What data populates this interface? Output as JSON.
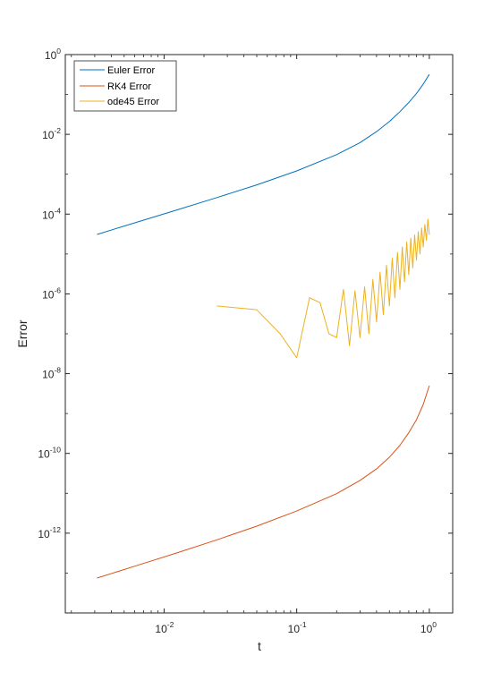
{
  "chart_data": {
    "type": "line",
    "xlabel": "t",
    "ylabel": "Error",
    "xscale": "log",
    "yscale": "log",
    "xlim": [
      0.0018,
      1.5
    ],
    "ylim": [
      1e-14,
      1
    ],
    "x_ticks": [
      {
        "base": "10",
        "exp": "-2",
        "value": 0.01
      },
      {
        "base": "10",
        "exp": "-1",
        "value": 0.1
      },
      {
        "base": "10",
        "exp": "0",
        "value": 1
      }
    ],
    "y_ticks": [
      {
        "base": "10",
        "exp": "0",
        "value": 1
      },
      {
        "base": "10",
        "exp": "-2",
        "value": 0.01
      },
      {
        "base": "10",
        "exp": "-4",
        "value": 0.0001
      },
      {
        "base": "10",
        "exp": "-6",
        "value": 1e-06
      },
      {
        "base": "10",
        "exp": "-8",
        "value": 1e-08
      },
      {
        "base": "10",
        "exp": "-10",
        "value": 1e-10
      },
      {
        "base": "10",
        "exp": "-12",
        "value": 1e-12
      }
    ],
    "grid": false,
    "legend_position": "top-left",
    "series": [
      {
        "name": "Euler Error",
        "color": "#0072BD",
        "x": [
          0.003125,
          0.00625,
          0.0125,
          0.025,
          0.05,
          0.1,
          0.2,
          0.3,
          0.4,
          0.5,
          0.6,
          0.7,
          0.8,
          0.9,
          1.0
        ],
        "y": [
          3.1e-05,
          6.3e-05,
          0.000127,
          0.00026,
          0.00054,
          0.00121,
          0.0031,
          0.0062,
          0.0117,
          0.021,
          0.037,
          0.063,
          0.106,
          0.182,
          0.32
        ]
      },
      {
        "name": "RK4 Error",
        "color": "#D95319",
        "x": [
          0.003125,
          0.00625,
          0.0125,
          0.025,
          0.05,
          0.1,
          0.2,
          0.3,
          0.4,
          0.5,
          0.6,
          0.7,
          0.8,
          0.9,
          1.0
        ],
        "y": [
          7.5e-14,
          1.55e-13,
          3.2e-13,
          6.8e-13,
          1.5e-12,
          3.6e-12,
          9.8e-12,
          2.1e-11,
          4.1e-11,
          8e-11,
          1.6e-10,
          3.3e-10,
          7e-10,
          1.7e-09,
          5e-09
        ]
      },
      {
        "name": "ode45 Error",
        "color": "#EDB120",
        "x": [
          0.025,
          0.05,
          0.075,
          0.1,
          0.125,
          0.15,
          0.175,
          0.2,
          0.225,
          0.25,
          0.275,
          0.3,
          0.325,
          0.35,
          0.375,
          0.4,
          0.425,
          0.45,
          0.475,
          0.5,
          0.525,
          0.55,
          0.575,
          0.6,
          0.625,
          0.65,
          0.675,
          0.7,
          0.725,
          0.75,
          0.775,
          0.8,
          0.825,
          0.85,
          0.875,
          0.9,
          0.925,
          0.95,
          0.975,
          1.0
        ],
        "y": [
          5e-07,
          4e-07,
          1e-07,
          2.5e-08,
          8e-07,
          6e-07,
          1e-07,
          8e-08,
          1.3e-06,
          5e-08,
          1.2e-06,
          8e-08,
          1.5e-06,
          1e-07,
          2.3e-06,
          2e-07,
          3.5e-06,
          3e-07,
          5.2e-06,
          5e-07,
          7.8e-06,
          8e-07,
          1.1e-05,
          1.3e-06,
          1.5e-05,
          2e-06,
          2e-05,
          3e-06,
          2.5e-05,
          4.5e-06,
          3e-05,
          7e-06,
          3.6e-05,
          1e-05,
          4.5e-05,
          1.5e-05,
          5.5e-05,
          2.2e-05,
          7.5e-05,
          3e-05
        ]
      }
    ]
  }
}
